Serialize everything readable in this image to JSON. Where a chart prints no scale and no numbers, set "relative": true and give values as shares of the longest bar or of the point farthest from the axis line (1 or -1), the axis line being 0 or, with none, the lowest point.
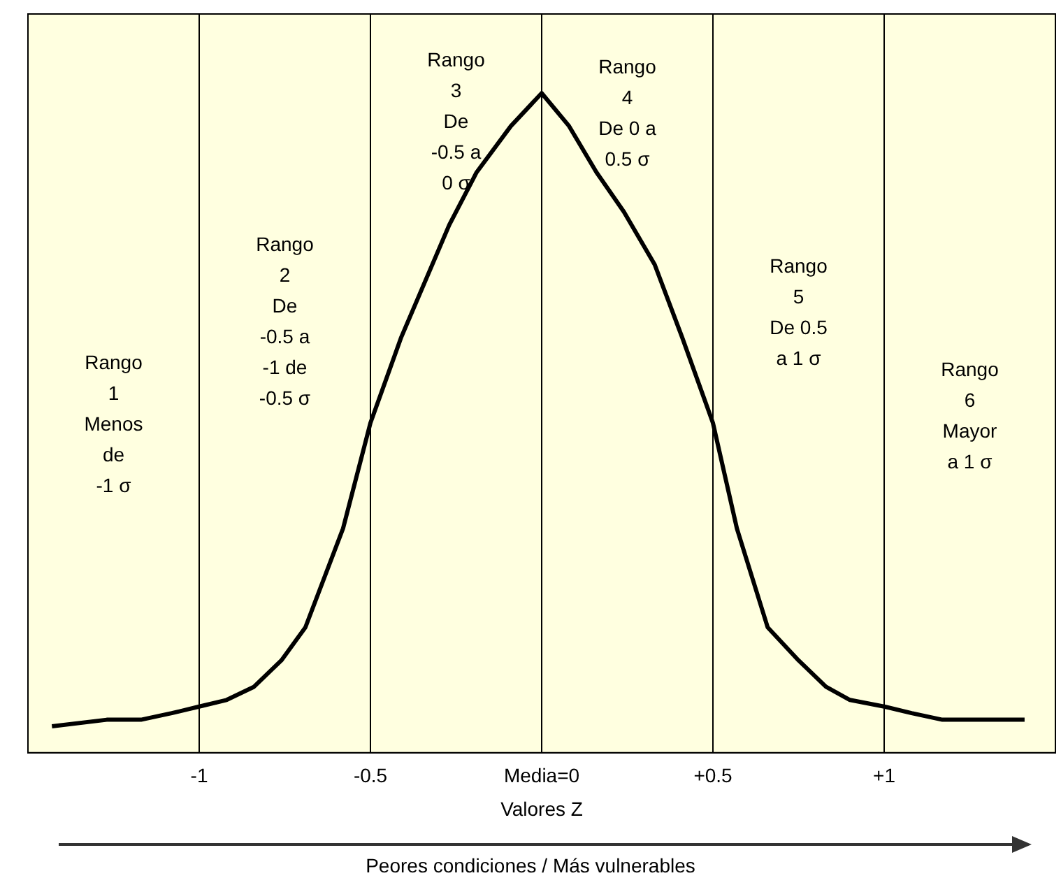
{
  "chart_data": {
    "type": "line",
    "relative": true,
    "xlabel": "Valores Z",
    "x": [
      -1.43,
      -1.27,
      -1.17,
      -1.08,
      -1.0,
      -0.92,
      -0.84,
      -0.76,
      -0.69,
      -0.58,
      -0.5,
      -0.41,
      -0.27,
      -0.19,
      -0.09,
      0,
      0.08,
      0.16,
      0.24,
      0.33,
      0.41,
      0.5,
      0.57,
      0.66,
      0.75,
      0.83,
      0.9,
      1.0,
      1.08,
      1.17,
      1.29,
      1.41
    ],
    "series": [
      {
        "color": "#000000",
        "values": [
          0.04,
          0.05,
          0.05,
          0.06,
          0.07,
          0.08,
          0.1,
          0.14,
          0.19,
          0.34,
          0.5,
          0.63,
          0.8,
          0.88,
          0.95,
          1,
          0.95,
          0.88,
          0.82,
          0.74,
          0.63,
          0.5,
          0.34,
          0.19,
          0.14,
          0.1,
          0.08,
          0.07,
          0.06,
          0.05,
          0.05,
          0.05
        ]
      }
    ],
    "xlim": [
      -1.5,
      1.5
    ],
    "xticks": [
      -1,
      -0.5,
      {
        "value": 0,
        "label": "Media=0"
      },
      {
        "value": 0.5,
        "label": "+0.5"
      },
      {
        "value": 1,
        "label": "+1"
      }
    ],
    "grid": false,
    "legend": false,
    "marker": "none",
    "line_style": "solid",
    "ref_lines": [
      {
        "axis": "x",
        "value": -1,
        "color": "#000000"
      },
      {
        "axis": "x",
        "value": -0.5,
        "color": "#000000"
      },
      {
        "axis": "x",
        "value": 0,
        "color": "#000000"
      },
      {
        "axis": "x",
        "value": 0.5,
        "color": "#000000"
      },
      {
        "axis": "x",
        "value": 1,
        "color": "#000000"
      }
    ],
    "bands": [
      {
        "axis": "x",
        "from": -1.5,
        "to": -1,
        "color": "#ffffe0",
        "label": "Rango\n1\nMenos\nde\n-1 σ"
      },
      {
        "axis": "x",
        "from": -1,
        "to": -0.5,
        "color": "#ffffe0",
        "label": "Rango\n2\nDe\n-0.5 a\n-1 de\n-0.5 σ"
      },
      {
        "axis": "x",
        "from": -0.5,
        "to": 0,
        "color": "#ffffe0",
        "label": "Rango\n3\nDe\n-0.5 a\n0 σ"
      },
      {
        "axis": "x",
        "from": 0,
        "to": 0.5,
        "color": "#ffffe0",
        "label": "Rango\n4\nDe 0 a\n0.5 σ"
      },
      {
        "axis": "x",
        "from": 0.5,
        "to": 1,
        "color": "#ffffe0",
        "label": "Rango\n5\nDe 0.5\na 1 σ"
      },
      {
        "axis": "x",
        "from": 1,
        "to": 1.5,
        "color": "#ffffe0",
        "label": "Rango\n6\nMayor\na 1 σ"
      }
    ],
    "annotations": [
      "Peores condiciones / Más vulnerables"
    ]
  }
}
